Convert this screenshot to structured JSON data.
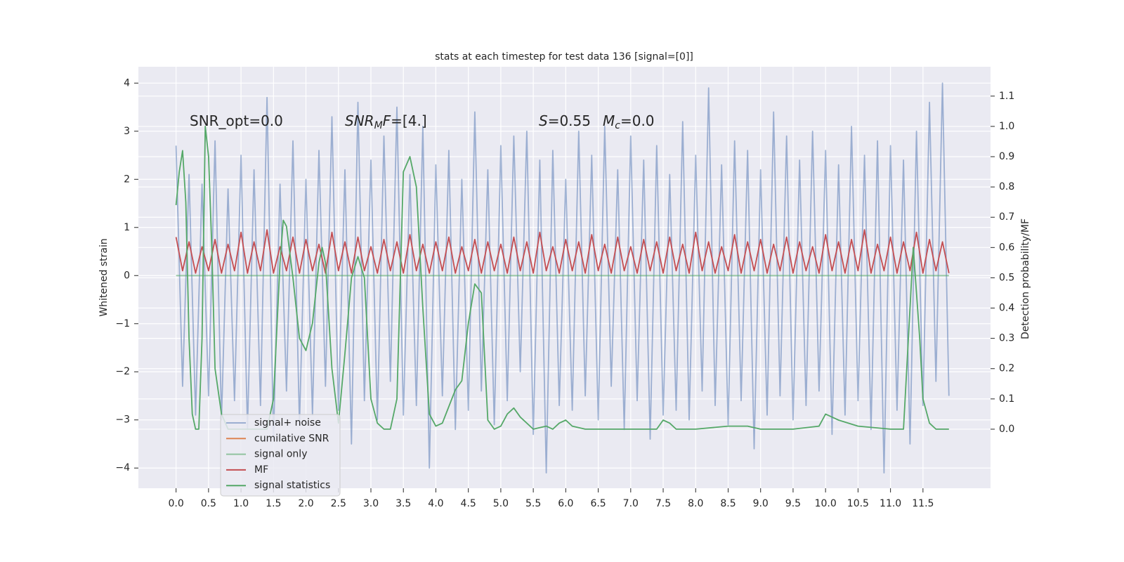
{
  "chart_data": {
    "type": "line",
    "title": "stats at each timestep for test data 136 [signal=[0]]",
    "ylabel": "Whitened strain",
    "y2label": "Detection probability/MF",
    "annotations": [
      [
        {
          "text": "SNR_opt=0.0"
        }
      ],
      [
        {
          "text": "SNR",
          "italic": true
        },
        {
          "text": "M",
          "italic": true,
          "sub": true
        },
        {
          "text": "F",
          "italic": true
        },
        {
          "text": "=[4.]"
        }
      ],
      [
        {
          "text": "S",
          "italic": true
        },
        {
          "text": "=0.55"
        }
      ],
      [
        {
          "text": "M",
          "italic": true
        },
        {
          "text": "c",
          "italic": true,
          "sub": true
        },
        {
          "text": "=0.0"
        }
      ]
    ],
    "grid": true,
    "legend": "lower left",
    "xlim": [
      -0.58,
      12.54
    ],
    "ylim": [
      -4.42,
      4.34
    ],
    "y2lim": [
      -0.195,
      1.197
    ],
    "xticks": [
      {
        "value": 0,
        "label": "0.0"
      },
      {
        "value": 0.5,
        "label": "0.5"
      },
      {
        "value": 1,
        "label": "1.0"
      },
      {
        "value": 1.5,
        "label": "1.5"
      },
      {
        "value": 2,
        "label": "2.0"
      },
      {
        "value": 2.5,
        "label": "2.5"
      },
      {
        "value": 3,
        "label": "3.0"
      },
      {
        "value": 3.5,
        "label": "3.5"
      },
      {
        "value": 4,
        "label": "4.0"
      },
      {
        "value": 4.5,
        "label": "4.5"
      },
      {
        "value": 5,
        "label": "5.0"
      },
      {
        "value": 5.5,
        "label": "5.5"
      },
      {
        "value": 6,
        "label": "6.0"
      },
      {
        "value": 6.5,
        "label": "6.5"
      },
      {
        "value": 7,
        "label": "7.0"
      },
      {
        "value": 7.5,
        "label": "7.5"
      },
      {
        "value": 8,
        "label": "8.0"
      },
      {
        "value": 8.5,
        "label": "8.5"
      },
      {
        "value": 9,
        "label": "9.0"
      },
      {
        "value": 9.5,
        "label": "9.5"
      },
      {
        "value": 10,
        "label": "10.0"
      },
      {
        "value": 10.5,
        "label": "10.5"
      },
      {
        "value": 11,
        "label": "11.0"
      },
      {
        "value": 11.5,
        "label": "11.5"
      }
    ],
    "yticks": [
      {
        "value": -4,
        "label": "−4"
      },
      {
        "value": -3,
        "label": "−3"
      },
      {
        "value": -2,
        "label": "−2"
      },
      {
        "value": -1,
        "label": "−1"
      },
      0,
      1,
      2,
      3,
      4
    ],
    "y2ticks": [
      {
        "value": 0,
        "label": "0.0"
      },
      {
        "value": 0.1,
        "label": "0.1"
      },
      {
        "value": 0.2,
        "label": "0.2"
      },
      {
        "value": 0.3,
        "label": "0.3"
      },
      {
        "value": 0.4,
        "label": "0.4"
      },
      {
        "value": 0.5,
        "label": "0.5"
      },
      {
        "value": 0.6,
        "label": "0.6"
      },
      {
        "value": 0.7,
        "label": "0.7"
      },
      {
        "value": 0.8,
        "label": "0.8"
      },
      {
        "value": 0.9,
        "label": "0.9"
      },
      {
        "value": 1,
        "label": "1.0"
      },
      {
        "value": 1.1,
        "label": "1.1"
      }
    ],
    "x": [
      0.0,
      0.1,
      0.2,
      0.3,
      0.4,
      0.5,
      0.6,
      0.7,
      0.8,
      0.9,
      1.0,
      1.1,
      1.2,
      1.3,
      1.4,
      1.5,
      1.6,
      1.7,
      1.8,
      1.9,
      2.0,
      2.1,
      2.2,
      2.3,
      2.4,
      2.5,
      2.6,
      2.7,
      2.8,
      2.9,
      3.0,
      3.1,
      3.2,
      3.3,
      3.4,
      3.5,
      3.6,
      3.7,
      3.8,
      3.9,
      4.0,
      4.1,
      4.2,
      4.3,
      4.4,
      4.5,
      4.6,
      4.7,
      4.8,
      4.9,
      5.0,
      5.1,
      5.2,
      5.3,
      5.4,
      5.5,
      5.6,
      5.7,
      5.8,
      5.9,
      6.0,
      6.1,
      6.2,
      6.3,
      6.4,
      6.5,
      6.6,
      6.7,
      6.8,
      6.9,
      7.0,
      7.1,
      7.2,
      7.3,
      7.4,
      7.5,
      7.6,
      7.7,
      7.8,
      7.9,
      8.0,
      8.1,
      8.2,
      8.3,
      8.4,
      8.5,
      8.6,
      8.7,
      8.8,
      8.9,
      9.0,
      9.1,
      9.2,
      9.3,
      9.4,
      9.5,
      9.6,
      9.7,
      9.8,
      9.9,
      10.0,
      10.1,
      10.2,
      10.3,
      10.4,
      10.5,
      10.6,
      10.7,
      10.8,
      10.9,
      11.0,
      11.1,
      11.2,
      11.3,
      11.4,
      11.5,
      11.6,
      11.7,
      11.8,
      11.9
    ],
    "series": [
      {
        "name": "signal+ noise",
        "color": "#4c72b0",
        "opacity": 0.5,
        "values": [
          2.7,
          -2.3,
          2.1,
          -2.9,
          1.9,
          -2.5,
          2.8,
          -3.0,
          1.8,
          -2.6,
          2.5,
          -3.2,
          2.2,
          -2.7,
          3.7,
          -3.4,
          1.9,
          -2.4,
          2.8,
          -3.1,
          2.0,
          -2.9,
          2.6,
          -2.3,
          3.3,
          -2.8,
          2.2,
          -3.5,
          3.6,
          -2.6,
          2.4,
          -3.0,
          2.9,
          -2.2,
          3.5,
          -2.9,
          2.1,
          -2.7,
          3.1,
          -4.0,
          2.3,
          -2.5,
          2.6,
          -3.2,
          2.0,
          -2.8,
          3.4,
          -2.4,
          2.2,
          -3.1,
          2.7,
          -2.6,
          2.9,
          -2.0,
          3.0,
          -3.3,
          2.4,
          -4.1,
          2.6,
          -2.7,
          2.0,
          -2.8,
          3.0,
          -2.5,
          2.5,
          -3.0,
          3.1,
          -2.3,
          2.2,
          -3.2,
          2.9,
          -2.6,
          2.4,
          -3.4,
          2.7,
          -2.9,
          2.1,
          -2.8,
          3.2,
          -3.0,
          2.5,
          -2.4,
          3.9,
          -2.7,
          2.3,
          -3.1,
          2.8,
          -2.6,
          2.6,
          -3.6,
          2.2,
          -2.9,
          3.4,
          -2.5,
          2.9,
          -3.0,
          2.4,
          -2.7,
          3.0,
          -2.4,
          2.6,
          -3.3,
          2.3,
          -2.9,
          3.1,
          -2.6,
          2.5,
          -3.2,
          2.8,
          -4.1,
          2.7,
          -2.8,
          2.4,
          -3.5,
          3.0,
          -2.7,
          3.6,
          -2.2,
          4.0,
          -2.5
        ]
      },
      {
        "name": "cumilative SNR",
        "color": "#dd8452"
      },
      {
        "name": "signal only",
        "color": "#55a868",
        "opacity": 0.6,
        "x": [
          0,
          11.9
        ],
        "values": [
          0,
          0
        ]
      },
      {
        "name": "MF",
        "color": "#c44e52",
        "values": [
          0.8,
          0.1,
          0.7,
          0.05,
          0.6,
          0.1,
          0.75,
          0.05,
          0.65,
          0.1,
          0.9,
          0.05,
          0.7,
          0.1,
          0.95,
          0.05,
          0.6,
          0.1,
          0.8,
          0.05,
          0.75,
          0.1,
          0.65,
          0.05,
          0.9,
          0.1,
          0.7,
          0.05,
          0.8,
          0.1,
          0.6,
          0.05,
          0.75,
          0.1,
          0.7,
          0.05,
          0.85,
          0.1,
          0.65,
          0.05,
          0.7,
          0.1,
          0.8,
          0.05,
          0.6,
          0.1,
          0.75,
          0.05,
          0.7,
          0.1,
          0.65,
          0.05,
          0.8,
          0.1,
          0.7,
          0.05,
          0.9,
          0.1,
          0.6,
          0.05,
          0.75,
          0.1,
          0.7,
          0.05,
          0.85,
          0.1,
          0.65,
          0.05,
          0.8,
          0.1,
          0.6,
          0.05,
          0.75,
          0.1,
          0.7,
          0.05,
          0.8,
          0.1,
          0.65,
          0.05,
          0.9,
          0.1,
          0.7,
          0.05,
          0.6,
          0.1,
          0.85,
          0.05,
          0.7,
          0.1,
          0.75,
          0.05,
          0.65,
          0.1,
          0.8,
          0.05,
          0.7,
          0.1,
          0.6,
          0.05,
          0.85,
          0.1,
          0.7,
          0.05,
          0.75,
          0.1,
          0.95,
          0.05,
          0.65,
          0.1,
          0.8,
          0.05,
          0.7,
          0.1,
          0.9,
          0.05,
          0.75,
          0.1,
          0.7,
          0.05
        ]
      },
      {
        "name": "signal statistics",
        "color": "#55a868",
        "axis": "y2",
        "x": [
          0.0,
          0.05,
          0.1,
          0.15,
          0.2,
          0.25,
          0.3,
          0.35,
          0.4,
          0.45,
          0.5,
          0.55,
          0.6,
          0.7,
          0.8,
          0.9,
          1.0,
          1.1,
          1.2,
          1.3,
          1.4,
          1.5,
          1.6,
          1.65,
          1.7,
          1.8,
          1.9,
          2.0,
          2.1,
          2.2,
          2.25,
          2.3,
          2.4,
          2.5,
          2.6,
          2.7,
          2.8,
          2.9,
          3.0,
          3.1,
          3.2,
          3.3,
          3.4,
          3.5,
          3.6,
          3.7,
          3.8,
          3.9,
          4.0,
          4.1,
          4.3,
          4.4,
          4.5,
          4.6,
          4.7,
          4.8,
          4.9,
          5.0,
          5.1,
          5.2,
          5.3,
          5.5,
          5.7,
          5.8,
          5.9,
          6.0,
          6.1,
          6.3,
          6.5,
          7.0,
          7.4,
          7.5,
          7.6,
          7.7,
          8.0,
          8.5,
          8.7,
          8.8,
          9.0,
          9.5,
          9.9,
          10.0,
          10.1,
          10.2,
          10.5,
          11.0,
          11.2,
          11.3,
          11.35,
          11.45,
          11.5,
          11.6,
          11.7,
          11.9
        ],
        "values": [
          0.74,
          0.85,
          0.92,
          0.75,
          0.3,
          0.05,
          0.0,
          0.0,
          0.3,
          1.0,
          0.9,
          0.6,
          0.2,
          0.05,
          0.0,
          0.0,
          0.0,
          0.0,
          0.0,
          0.0,
          0.0,
          0.1,
          0.55,
          0.69,
          0.67,
          0.5,
          0.3,
          0.26,
          0.35,
          0.55,
          0.6,
          0.55,
          0.2,
          0.02,
          0.25,
          0.5,
          0.57,
          0.5,
          0.1,
          0.02,
          0.0,
          0.0,
          0.1,
          0.85,
          0.9,
          0.8,
          0.4,
          0.05,
          0.01,
          0.02,
          0.13,
          0.16,
          0.35,
          0.48,
          0.45,
          0.03,
          0.0,
          0.01,
          0.05,
          0.07,
          0.04,
          0.0,
          0.01,
          0.0,
          0.02,
          0.03,
          0.01,
          0.0,
          0.0,
          0.0,
          0.0,
          0.03,
          0.02,
          0.0,
          0.0,
          0.01,
          0.01,
          0.01,
          0.0,
          0.0,
          0.01,
          0.05,
          0.04,
          0.03,
          0.01,
          0.0,
          0.0,
          0.4,
          0.6,
          0.3,
          0.1,
          0.02,
          0.0,
          0.0
        ]
      }
    ]
  }
}
